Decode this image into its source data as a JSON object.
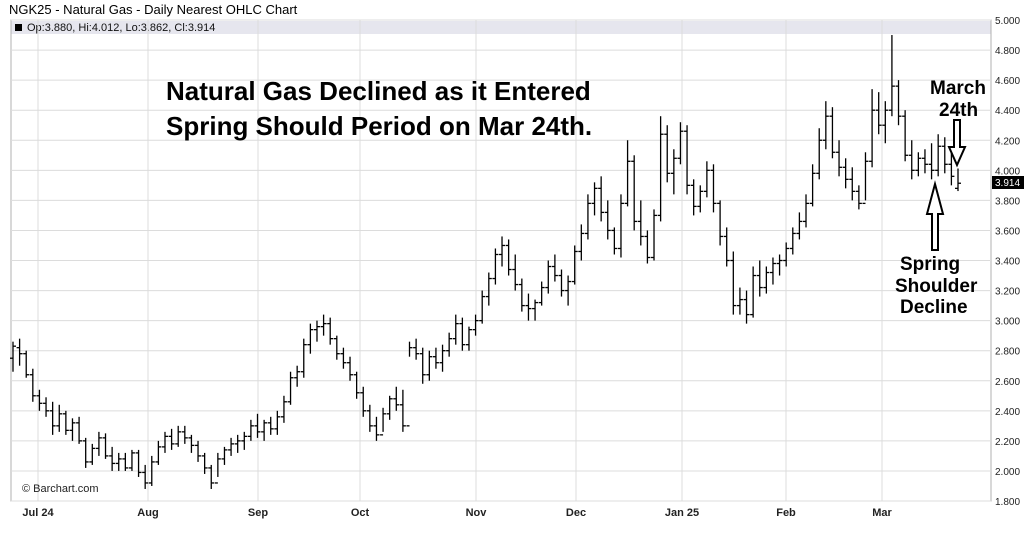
{
  "header": {
    "title": "NGK25 - Natural Gas - Daily Nearest OHLC Chart",
    "ohlc_text": "Op:3.880, Hi:4.012, Lo:3.862, Cl:3.914",
    "legend_color": "#000000"
  },
  "annotations": {
    "headline_line1": "Natural Gas Declined as it Entered",
    "headline_line2": "Spring Should Period on Mar 24th.",
    "march_line1": "March",
    "march_line2": "24th",
    "spring_line1": "Spring",
    "spring_line2": "Shoulder",
    "spring_line3": "Decline"
  },
  "footer": {
    "copyright": "© Barchart.com"
  },
  "last_price_label": "3.914",
  "colors": {
    "bars": "#000000",
    "grid": "#dcdcdc",
    "plot_border": "#b0b0b0",
    "last_price_bg": "#000000"
  },
  "chart_data": {
    "type": "ohlc",
    "title": "NGK25 - Natural Gas - Daily Nearest OHLC Chart",
    "ylim": [
      1.8,
      5.0
    ],
    "y_ticks": [
      "5.000",
      "4.800",
      "4.600",
      "4.400",
      "4.200",
      "4.000",
      "3.800",
      "3.600",
      "3.400",
      "3.200",
      "3.000",
      "2.800",
      "2.600",
      "2.400",
      "2.200",
      "2.000",
      "1.800"
    ],
    "x_ticks": [
      "Jul 24",
      "Aug",
      "Sep",
      "Oct",
      "Nov",
      "Dec",
      "Jan 25",
      "Feb",
      "Mar"
    ],
    "grid": true,
    "series": [
      {
        "values": [
          [
            2.75,
            2.86,
            2.66,
            2.83
          ],
          [
            2.82,
            2.88,
            2.7,
            2.78
          ],
          [
            2.78,
            2.8,
            2.62,
            2.64
          ],
          [
            2.64,
            2.68,
            2.46,
            2.5
          ],
          [
            2.5,
            2.54,
            2.4,
            2.45
          ],
          [
            2.45,
            2.49,
            2.36,
            2.4
          ],
          [
            2.4,
            2.46,
            2.24,
            2.3
          ],
          [
            2.3,
            2.44,
            2.26,
            2.38
          ],
          [
            2.38,
            2.4,
            2.24,
            2.27
          ],
          [
            2.27,
            2.35,
            2.2,
            2.32
          ],
          [
            2.32,
            2.36,
            2.18,
            2.2
          ],
          [
            2.2,
            2.22,
            2.02,
            2.06
          ],
          [
            2.06,
            2.18,
            2.04,
            2.15
          ],
          [
            2.15,
            2.26,
            2.1,
            2.22
          ],
          [
            2.22,
            2.25,
            2.08,
            2.1
          ],
          [
            2.1,
            2.16,
            2.0,
            2.05
          ],
          [
            2.05,
            2.12,
            2.0,
            2.08
          ],
          [
            2.08,
            2.12,
            2.0,
            2.02
          ],
          [
            2.02,
            2.14,
            2.0,
            2.12
          ],
          [
            2.12,
            2.14,
            1.96,
            1.99
          ],
          [
            1.99,
            2.04,
            1.88,
            1.92
          ],
          [
            1.92,
            2.1,
            1.9,
            2.06
          ],
          [
            2.06,
            2.2,
            2.04,
            2.16
          ],
          [
            2.16,
            2.26,
            2.12,
            2.23
          ],
          [
            2.23,
            2.28,
            2.14,
            2.18
          ],
          [
            2.18,
            2.3,
            2.16,
            2.26
          ],
          [
            2.26,
            2.3,
            2.18,
            2.22
          ],
          [
            2.22,
            2.24,
            2.12,
            2.17
          ],
          [
            2.17,
            2.2,
            2.06,
            2.1
          ],
          [
            2.1,
            2.12,
            1.98,
            2.02
          ],
          [
            2.02,
            2.04,
            1.88,
            1.92
          ],
          [
            1.92,
            2.12,
            1.96,
            2.08
          ],
          [
            2.08,
            2.16,
            2.04,
            2.14
          ],
          [
            2.14,
            2.22,
            2.1,
            2.18
          ],
          [
            2.18,
            2.24,
            2.12,
            2.2
          ],
          [
            2.2,
            2.26,
            2.14,
            2.23
          ],
          [
            2.23,
            2.34,
            2.2,
            2.3
          ],
          [
            2.3,
            2.38,
            2.22,
            2.26
          ],
          [
            2.26,
            2.34,
            2.2,
            2.32
          ],
          [
            2.32,
            2.36,
            2.24,
            2.28
          ],
          [
            2.28,
            2.4,
            2.24,
            2.36
          ],
          [
            2.36,
            2.5,
            2.32,
            2.46
          ],
          [
            2.46,
            2.66,
            2.44,
            2.62
          ],
          [
            2.62,
            2.7,
            2.56,
            2.66
          ],
          [
            2.66,
            2.88,
            2.62,
            2.84
          ],
          [
            2.84,
            2.98,
            2.78,
            2.94
          ],
          [
            2.94,
            3.0,
            2.86,
            2.96
          ],
          [
            2.96,
            3.04,
            2.9,
            2.98
          ],
          [
            2.98,
            3.02,
            2.84,
            2.88
          ],
          [
            2.88,
            2.9,
            2.74,
            2.78
          ],
          [
            2.78,
            2.82,
            2.68,
            2.72
          ],
          [
            2.72,
            2.76,
            2.6,
            2.64
          ],
          [
            2.64,
            2.66,
            2.48,
            2.52
          ],
          [
            2.52,
            2.56,
            2.36,
            2.4
          ],
          [
            2.4,
            2.44,
            2.26,
            2.3
          ],
          [
            2.3,
            2.36,
            2.2,
            2.24
          ],
          [
            2.24,
            2.42,
            2.26,
            2.38
          ],
          [
            2.38,
            2.5,
            2.34,
            2.48
          ],
          [
            2.48,
            2.56,
            2.4,
            2.44
          ],
          [
            2.44,
            2.54,
            2.26,
            2.3
          ],
          [
            2.3,
            2.86,
            2.76,
            2.82
          ],
          [
            2.82,
            2.88,
            2.74,
            2.78
          ],
          [
            2.78,
            2.82,
            2.58,
            2.64
          ],
          [
            2.64,
            2.8,
            2.6,
            2.76
          ],
          [
            2.76,
            2.82,
            2.68,
            2.72
          ],
          [
            2.72,
            2.84,
            2.66,
            2.8
          ],
          [
            2.8,
            2.92,
            2.76,
            2.88
          ],
          [
            2.88,
            3.04,
            2.84,
            2.98
          ],
          [
            2.98,
            3.02,
            2.8,
            2.84
          ],
          [
            2.84,
            2.96,
            2.8,
            2.94
          ],
          [
            2.94,
            3.04,
            2.9,
            3.0
          ],
          [
            3.0,
            3.2,
            2.98,
            3.16
          ],
          [
            3.16,
            3.32,
            3.1,
            3.28
          ],
          [
            3.28,
            3.48,
            3.24,
            3.44
          ],
          [
            3.44,
            3.56,
            3.36,
            3.5
          ],
          [
            3.5,
            3.54,
            3.3,
            3.34
          ],
          [
            3.34,
            3.44,
            3.2,
            3.24
          ],
          [
            3.24,
            3.28,
            3.06,
            3.1
          ],
          [
            3.1,
            3.18,
            3.0,
            3.08
          ],
          [
            3.08,
            3.14,
            3.0,
            3.12
          ],
          [
            3.12,
            3.26,
            3.1,
            3.22
          ],
          [
            3.22,
            3.4,
            3.18,
            3.36
          ],
          [
            3.36,
            3.44,
            3.26,
            3.3
          ],
          [
            3.3,
            3.34,
            3.16,
            3.2
          ],
          [
            3.2,
            3.3,
            3.1,
            3.26
          ],
          [
            3.26,
            3.5,
            3.24,
            3.46
          ],
          [
            3.46,
            3.64,
            3.4,
            3.58
          ],
          [
            3.58,
            3.84,
            3.54,
            3.78
          ],
          [
            3.78,
            3.92,
            3.7,
            3.88
          ],
          [
            3.88,
            3.96,
            3.66,
            3.72
          ],
          [
            3.72,
            3.8,
            3.54,
            3.6
          ],
          [
            3.6,
            3.62,
            3.44,
            3.48
          ],
          [
            3.48,
            3.84,
            3.42,
            3.78
          ],
          [
            3.78,
            4.2,
            3.76,
            4.06
          ],
          [
            4.06,
            4.1,
            3.6,
            3.66
          ],
          [
            3.66,
            3.8,
            3.5,
            3.56
          ],
          [
            3.56,
            3.6,
            3.38,
            3.42
          ],
          [
            3.42,
            3.74,
            3.4,
            3.7
          ],
          [
            3.7,
            4.36,
            3.66,
            4.24
          ],
          [
            4.24,
            4.3,
            3.92,
            3.98
          ],
          [
            3.98,
            4.14,
            3.84,
            4.08
          ],
          [
            4.08,
            4.32,
            4.04,
            4.26
          ],
          [
            4.26,
            4.3,
            3.84,
            3.9
          ],
          [
            3.9,
            3.94,
            3.7,
            3.76
          ],
          [
            3.76,
            3.9,
            3.72,
            3.86
          ],
          [
            3.86,
            4.06,
            3.82,
            4.0
          ],
          [
            4.0,
            4.04,
            3.72,
            3.78
          ],
          [
            3.78,
            3.8,
            3.5,
            3.56
          ],
          [
            3.56,
            3.62,
            3.36,
            3.4
          ],
          [
            3.4,
            3.46,
            3.04,
            3.1
          ],
          [
            3.1,
            3.22,
            3.04,
            3.14
          ],
          [
            3.14,
            3.2,
            2.98,
            3.04
          ],
          [
            3.04,
            3.36,
            3.02,
            3.3
          ],
          [
            3.3,
            3.4,
            3.16,
            3.22
          ],
          [
            3.22,
            3.36,
            3.18,
            3.32
          ],
          [
            3.32,
            3.42,
            3.24,
            3.38
          ],
          [
            3.38,
            3.44,
            3.3,
            3.4
          ],
          [
            3.4,
            3.52,
            3.36,
            3.48
          ],
          [
            3.48,
            3.62,
            3.44,
            3.58
          ],
          [
            3.58,
            3.72,
            3.54,
            3.66
          ],
          [
            3.66,
            3.84,
            3.62,
            3.78
          ],
          [
            3.78,
            4.04,
            3.76,
            3.98
          ],
          [
            3.98,
            4.28,
            3.94,
            4.2
          ],
          [
            4.2,
            4.46,
            4.14,
            4.36
          ],
          [
            4.36,
            4.42,
            4.08,
            4.12
          ],
          [
            4.12,
            4.2,
            3.96,
            4.02
          ],
          [
            4.02,
            4.08,
            3.88,
            3.94
          ],
          [
            3.94,
            4.02,
            3.8,
            3.86
          ],
          [
            3.86,
            3.9,
            3.74,
            3.78
          ],
          [
            3.78,
            4.12,
            3.8,
            4.06
          ],
          [
            4.06,
            4.54,
            4.02,
            4.4
          ],
          [
            4.4,
            4.52,
            4.24,
            4.3
          ],
          [
            4.3,
            4.46,
            4.18,
            4.4
          ],
          [
            4.4,
            4.9,
            4.36,
            4.56
          ],
          [
            4.56,
            4.6,
            4.3,
            4.36
          ],
          [
            4.36,
            4.4,
            4.06,
            4.1
          ],
          [
            4.1,
            4.2,
            3.94,
            4.0
          ],
          [
            4.0,
            4.12,
            3.96,
            4.08
          ],
          [
            4.08,
            4.14,
            3.98,
            4.04
          ],
          [
            4.04,
            4.18,
            3.94,
            4.0
          ],
          [
            4.0,
            4.24,
            3.96,
            4.16
          ],
          [
            4.16,
            4.22,
            3.98,
            4.04
          ],
          [
            4.04,
            4.14,
            3.9,
            3.96
          ],
          [
            3.88,
            4.012,
            3.862,
            3.914
          ]
        ]
      }
    ]
  }
}
